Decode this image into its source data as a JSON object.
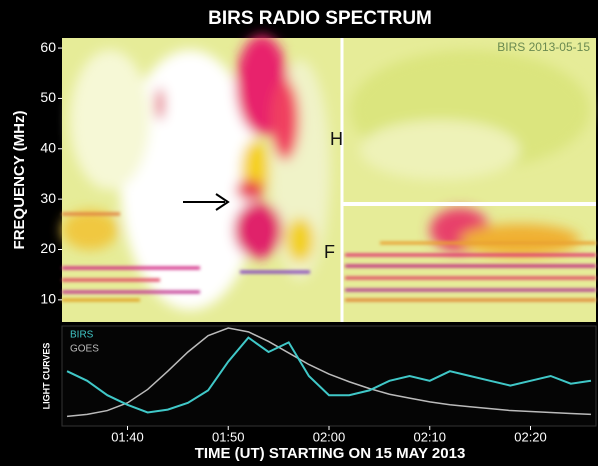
{
  "chart_data": [
    {
      "type": "spectrogram",
      "title": "BIRS RADIO SPECTRUM",
      "ylabel": "FREQUENCY (MHz)",
      "ylim": [
        5.6,
        62
      ],
      "yticks": [
        10,
        20,
        30,
        40,
        50,
        60
      ],
      "annotations": [
        "BIRS 2013-05-15",
        "H",
        "F"
      ]
    },
    {
      "type": "line",
      "ylabel": "LIGHT CURVES",
      "xlabel": "TIME (UT) STARTING ON 15 MAY 2013",
      "xlim": [
        33.5,
        86.5
      ],
      "xticks": [
        {
          "value": 40,
          "label": "01:40"
        },
        {
          "value": 50,
          "label": "01:50"
        },
        {
          "value": 60,
          "label": "02:00"
        },
        {
          "value": 70,
          "label": "02:10"
        },
        {
          "value": 80,
          "label": "02:20"
        }
      ],
      "ylim": [
        0,
        1
      ],
      "x": [
        34,
        36,
        38,
        40,
        42,
        44,
        46,
        48,
        50,
        52,
        54,
        56,
        58,
        60,
        62,
        64,
        66,
        68,
        70,
        72,
        74,
        76,
        78,
        80,
        82,
        84,
        86
      ],
      "series": [
        {
          "name": "BIRS",
          "color": "#40c8c8",
          "values": [
            0.55,
            0.45,
            0.3,
            0.2,
            0.12,
            0.15,
            0.22,
            0.35,
            0.65,
            0.9,
            0.75,
            0.85,
            0.5,
            0.3,
            0.3,
            0.35,
            0.45,
            0.5,
            0.45,
            0.55,
            0.5,
            0.45,
            0.4,
            0.45,
            0.5,
            0.42,
            0.45
          ]
        },
        {
          "name": "GOES",
          "color": "#bbbbbb",
          "values": [
            0.08,
            0.1,
            0.14,
            0.22,
            0.36,
            0.55,
            0.75,
            0.92,
            1.0,
            0.96,
            0.86,
            0.74,
            0.62,
            0.52,
            0.44,
            0.37,
            0.31,
            0.27,
            0.23,
            0.2,
            0.18,
            0.16,
            0.14,
            0.13,
            0.12,
            0.11,
            0.1
          ]
        }
      ]
    }
  ]
}
